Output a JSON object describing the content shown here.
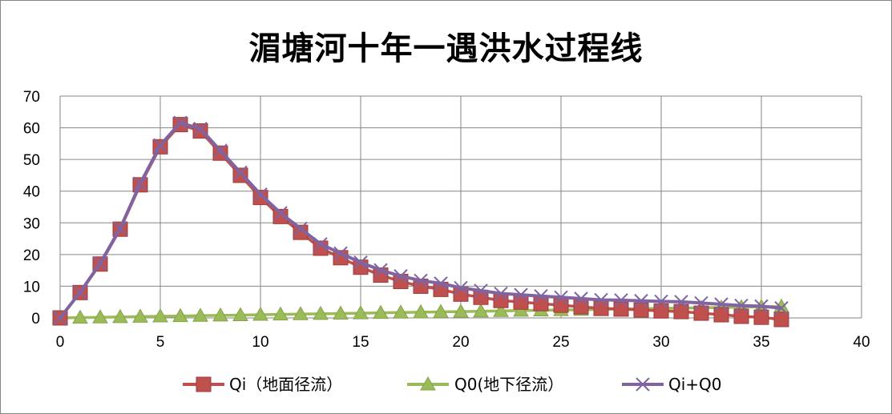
{
  "chart_data": {
    "type": "line",
    "title": "湄塘河十年一遇洪水过程线",
    "xlabel": "",
    "ylabel": "",
    "xlim": [
      0,
      40
    ],
    "ylim": [
      0,
      70
    ],
    "x_ticks": [
      0,
      5,
      10,
      15,
      20,
      25,
      30,
      35,
      40
    ],
    "y_ticks": [
      0,
      10,
      20,
      30,
      40,
      50,
      60,
      70
    ],
    "grid": true,
    "legend_position": "bottom",
    "x": [
      0,
      1,
      2,
      3,
      4,
      5,
      6,
      7,
      8,
      9,
      10,
      11,
      12,
      13,
      14,
      15,
      16,
      17,
      18,
      19,
      20,
      21,
      22,
      23,
      24,
      25,
      26,
      27,
      28,
      29,
      30,
      31,
      32,
      33,
      34,
      35,
      36
    ],
    "series": [
      {
        "name": "Qi（地面径流）",
        "color": "#C0504D",
        "marker": "square",
        "values": [
          0,
          8,
          17,
          28,
          42,
          54,
          61,
          59,
          52,
          45,
          38,
          32,
          27,
          22,
          19,
          16,
          13.5,
          11.5,
          10,
          9,
          7.5,
          6.5,
          5.5,
          5,
          4.5,
          4,
          3.5,
          3,
          2.8,
          2.5,
          2.2,
          2,
          1.5,
          1,
          0.5,
          0.2,
          -0.5
        ]
      },
      {
        "name": "Q0(地下径流）",
        "color": "#9BBB59",
        "marker": "triangle",
        "values": [
          0,
          0.1,
          0.2,
          0.3,
          0.4,
          0.5,
          0.6,
          0.7,
          0.8,
          0.9,
          1,
          1.1,
          1.2,
          1.3,
          1.4,
          1.5,
          1.6,
          1.7,
          1.8,
          1.9,
          2,
          2.1,
          2.2,
          2.3,
          2.4,
          2.5,
          2.6,
          2.7,
          2.8,
          2.9,
          3,
          3.1,
          3.2,
          3.3,
          3.4,
          3.5,
          3.6
        ]
      },
      {
        "name": "Qi+Q0",
        "color": "#8064A2",
        "marker": "x",
        "values": [
          0,
          8.1,
          17.2,
          28.3,
          42.4,
          54.5,
          61.6,
          59.7,
          52.8,
          45.9,
          39,
          33.1,
          28.2,
          23.3,
          20.4,
          17.5,
          15.1,
          13.2,
          11.8,
          10.9,
          9.5,
          8.6,
          7.7,
          7.3,
          6.9,
          6.5,
          6.1,
          5.7,
          5.6,
          5.4,
          5.2,
          5.1,
          4.7,
          4.3,
          3.9,
          3.7,
          3.1
        ]
      }
    ]
  }
}
